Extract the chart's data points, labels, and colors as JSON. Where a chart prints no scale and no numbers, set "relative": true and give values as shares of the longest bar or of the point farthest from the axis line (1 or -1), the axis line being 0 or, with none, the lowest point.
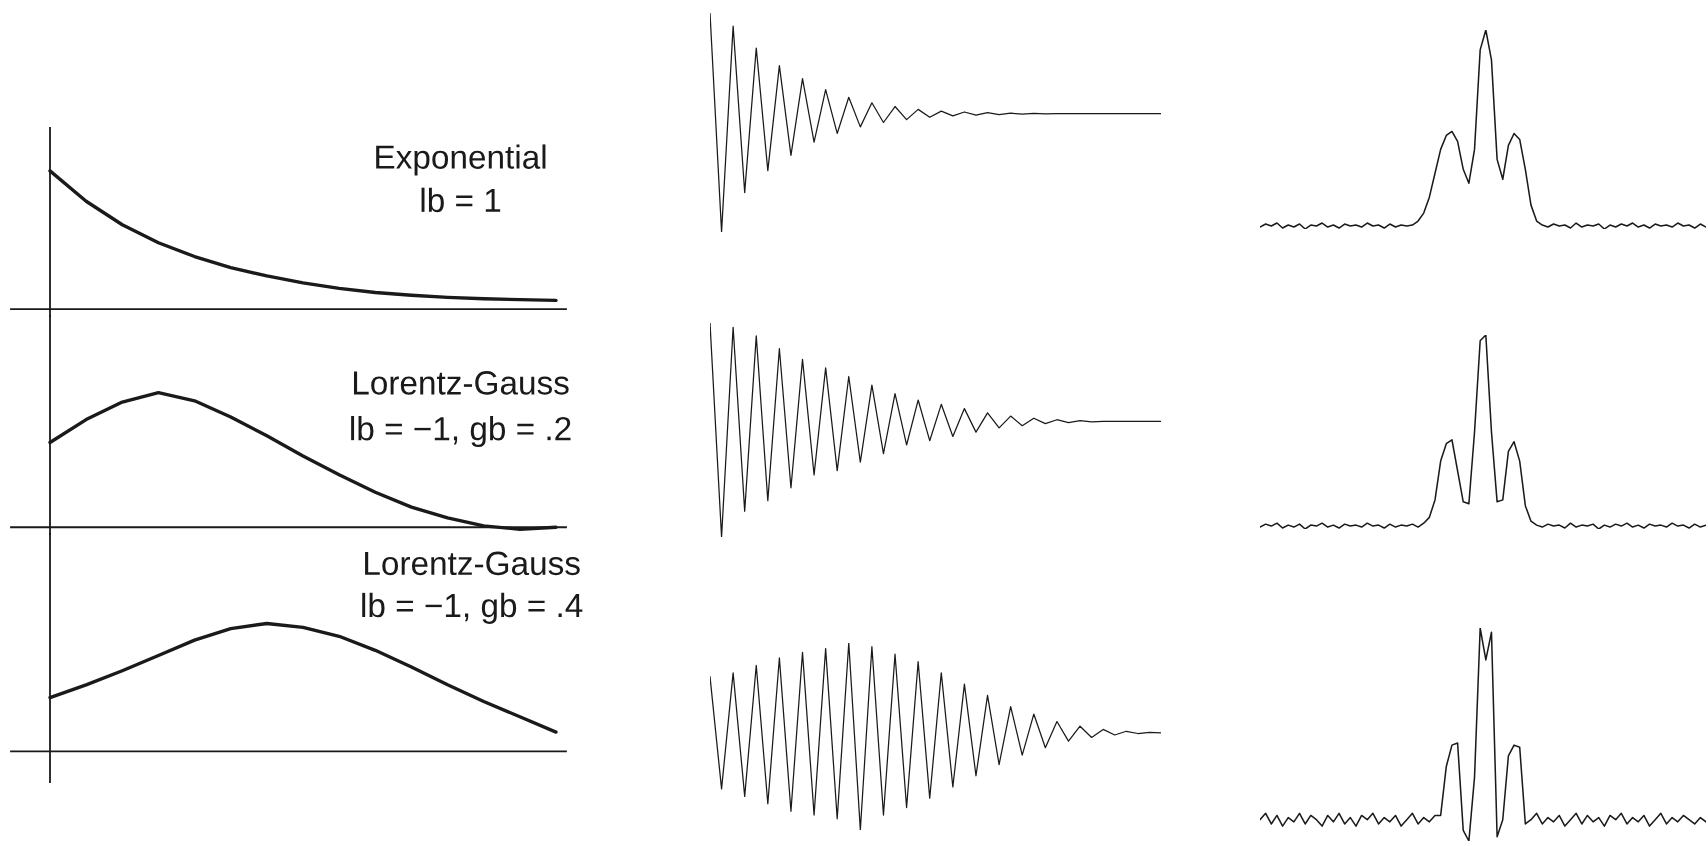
{
  "chart_data": [
    {
      "type": "line",
      "relative": true,
      "title": "Exponential",
      "subtitle": "lb = 1",
      "categories": [
        null,
        null,
        null,
        null,
        null,
        null,
        null,
        null,
        null,
        null,
        null,
        null,
        null,
        null,
        null
      ],
      "series": [
        {
          "color": "#1a1a1a",
          "values": [
            1.0,
            0.78,
            0.61,
            0.48,
            0.38,
            0.3,
            0.24,
            0.19,
            0.15,
            0.12,
            0.1,
            0.085,
            0.075,
            0.068,
            0.063
          ]
        }
      ]
    },
    {
      "type": "line",
      "relative": true,
      "categories": [
        null,
        null,
        null,
        null,
        null,
        null,
        null,
        null,
        null,
        null,
        null,
        null,
        null,
        null,
        null,
        null,
        null,
        null,
        null,
        null,
        null,
        null,
        null,
        null,
        null,
        null,
        null,
        null,
        null,
        null,
        null,
        null,
        null,
        null,
        null,
        null,
        null,
        null,
        null,
        null
      ],
      "series": [
        {
          "color": "#1a1a1a",
          "values": [
            1.0,
            0.0,
            0.94,
            0.18,
            0.84,
            0.28,
            0.76,
            0.35,
            0.7,
            0.41,
            0.65,
            0.45,
            0.615,
            0.48,
            0.59,
            0.5,
            0.573,
            0.513,
            0.56,
            0.524,
            0.552,
            0.53,
            0.548,
            0.534,
            0.545,
            0.536,
            0.543,
            0.538,
            0.542,
            0.539,
            0.54,
            0.54,
            0.54,
            0.54,
            0.54,
            0.54,
            0.54,
            0.54,
            0.54,
            0.54
          ]
        }
      ]
    },
    {
      "type": "line",
      "relative": true,
      "categories": [
        null,
        null,
        null,
        null,
        null,
        null,
        null,
        null,
        null,
        null,
        null,
        null,
        null,
        null,
        null,
        null,
        null,
        null,
        null,
        null,
        null,
        null,
        null,
        null,
        null,
        null,
        null,
        null,
        null,
        null,
        null,
        null,
        null,
        null,
        null,
        null,
        null,
        null,
        null,
        null,
        null,
        null,
        null,
        null,
        null,
        null,
        null,
        null,
        null,
        null,
        null,
        null,
        null,
        null,
        null,
        null,
        null,
        null,
        null,
        null,
        null,
        null,
        null,
        null,
        null,
        null,
        null,
        null,
        null,
        null,
        null,
        null,
        null,
        null,
        null,
        null,
        null,
        null,
        null,
        null
      ],
      "series": [
        {
          "color": "#1a1a1a",
          "values": [
            0.01,
            0.025,
            0.015,
            0.03,
            0.005,
            0.02,
            0.01,
            0.025,
            0.0,
            0.02,
            0.015,
            0.03,
            0.01,
            0.02,
            0.005,
            0.025,
            0.015,
            0.02,
            0.01,
            0.03,
            0.015,
            0.02,
            0.005,
            0.025,
            0.01,
            0.02,
            0.015,
            0.02,
            0.04,
            0.08,
            0.16,
            0.28,
            0.4,
            0.47,
            0.49,
            0.44,
            0.3,
            0.23,
            0.4,
            0.9,
            1.0,
            0.85,
            0.35,
            0.25,
            0.42,
            0.48,
            0.45,
            0.3,
            0.12,
            0.04,
            0.02,
            0.01,
            0.025,
            0.015,
            0.02,
            0.005,
            0.03,
            0.01,
            0.02,
            0.015,
            0.025,
            0.0,
            0.02,
            0.01,
            0.025,
            0.015,
            0.03,
            0.01,
            0.02,
            0.005,
            0.025,
            0.015,
            0.02,
            0.01,
            0.03,
            0.015,
            0.02,
            0.005,
            0.025,
            0.01
          ]
        }
      ]
    },
    {
      "type": "line",
      "relative": true,
      "title": "Lorentz-Gauss",
      "subtitle": "lb = −1, gb = .2",
      "categories": [
        null,
        null,
        null,
        null,
        null,
        null,
        null,
        null,
        null,
        null,
        null,
        null,
        null,
        null,
        null
      ],
      "series": [
        {
          "color": "#1a1a1a",
          "values": [
            0.63,
            0.8,
            0.93,
            1.0,
            0.94,
            0.82,
            0.68,
            0.53,
            0.39,
            0.26,
            0.15,
            0.07,
            0.01,
            -0.015,
            0.0
          ]
        }
      ]
    },
    {
      "type": "line",
      "relative": true,
      "categories": [
        null,
        null,
        null,
        null,
        null,
        null,
        null,
        null,
        null,
        null,
        null,
        null,
        null,
        null,
        null,
        null,
        null,
        null,
        null,
        null,
        null,
        null,
        null,
        null,
        null,
        null,
        null,
        null,
        null,
        null,
        null,
        null,
        null,
        null,
        null,
        null,
        null,
        null,
        null,
        null
      ],
      "series": [
        {
          "color": "#1a1a1a",
          "values": [
            1.0,
            0.0,
            0.98,
            0.12,
            0.94,
            0.17,
            0.88,
            0.23,
            0.83,
            0.29,
            0.79,
            0.31,
            0.75,
            0.35,
            0.71,
            0.39,
            0.67,
            0.43,
            0.64,
            0.45,
            0.62,
            0.47,
            0.6,
            0.49,
            0.58,
            0.51,
            0.565,
            0.52,
            0.555,
            0.53,
            0.548,
            0.534,
            0.544,
            0.538,
            0.54,
            0.54,
            0.54,
            0.54,
            0.54,
            0.54
          ]
        }
      ]
    },
    {
      "type": "line",
      "relative": true,
      "categories": [
        null,
        null,
        null,
        null,
        null,
        null,
        null,
        null,
        null,
        null,
        null,
        null,
        null,
        null,
        null,
        null,
        null,
        null,
        null,
        null,
        null,
        null,
        null,
        null,
        null,
        null,
        null,
        null,
        null,
        null,
        null,
        null,
        null,
        null,
        null,
        null,
        null,
        null,
        null,
        null,
        null,
        null,
        null,
        null,
        null,
        null,
        null,
        null,
        null,
        null,
        null,
        null,
        null,
        null,
        null,
        null,
        null,
        null,
        null,
        null,
        null,
        null,
        null,
        null,
        null,
        null,
        null,
        null,
        null,
        null,
        null,
        null,
        null,
        null,
        null,
        null,
        null,
        null,
        null,
        null
      ],
      "series": [
        {
          "color": "#1a1a1a",
          "values": [
            0.01,
            0.025,
            0.015,
            0.03,
            0.005,
            0.02,
            0.01,
            0.025,
            0.0,
            0.02,
            0.015,
            0.03,
            0.01,
            0.02,
            0.005,
            0.025,
            0.015,
            0.02,
            0.01,
            0.03,
            0.015,
            0.02,
            0.005,
            0.025,
            0.01,
            0.02,
            0.015,
            0.025,
            0.01,
            0.03,
            0.06,
            0.15,
            0.35,
            0.44,
            0.46,
            0.3,
            0.14,
            0.13,
            0.5,
            0.97,
            1.0,
            0.5,
            0.14,
            0.15,
            0.4,
            0.45,
            0.35,
            0.12,
            0.04,
            0.02,
            0.01,
            0.025,
            0.015,
            0.02,
            0.005,
            0.03,
            0.01,
            0.02,
            0.015,
            0.025,
            0.0,
            0.02,
            0.01,
            0.025,
            0.015,
            0.03,
            0.01,
            0.02,
            0.005,
            0.025,
            0.015,
            0.02,
            0.01,
            0.03,
            0.015,
            0.02,
            0.005,
            0.025,
            0.01,
            0.02
          ]
        }
      ]
    },
    {
      "type": "line",
      "relative": true,
      "title": "Lorentz-Gauss",
      "subtitle": "lb = −1, gb = .4",
      "categories": [
        null,
        null,
        null,
        null,
        null,
        null,
        null,
        null,
        null,
        null,
        null,
        null,
        null,
        null,
        null
      ],
      "series": [
        {
          "color": "#1a1a1a",
          "values": [
            0.42,
            0.52,
            0.63,
            0.75,
            0.87,
            0.96,
            1.0,
            0.97,
            0.9,
            0.79,
            0.66,
            0.52,
            0.39,
            0.27,
            0.15
          ]
        }
      ]
    },
    {
      "type": "line",
      "relative": true,
      "categories": [
        null,
        null,
        null,
        null,
        null,
        null,
        null,
        null,
        null,
        null,
        null,
        null,
        null,
        null,
        null,
        null,
        null,
        null,
        null,
        null,
        null,
        null,
        null,
        null,
        null,
        null,
        null,
        null,
        null,
        null,
        null,
        null,
        null,
        null,
        null,
        null,
        null,
        null,
        null,
        null
      ],
      "series": [
        {
          "color": "#1a1a1a",
          "values": [
            0.82,
            0.22,
            0.84,
            0.18,
            0.88,
            0.14,
            0.92,
            0.1,
            0.95,
            0.08,
            0.97,
            0.06,
            1.0,
            0.0,
            0.98,
            0.08,
            0.94,
            0.12,
            0.9,
            0.17,
            0.84,
            0.23,
            0.78,
            0.29,
            0.72,
            0.35,
            0.66,
            0.4,
            0.62,
            0.44,
            0.58,
            0.475,
            0.555,
            0.495,
            0.538,
            0.508,
            0.528,
            0.516,
            0.522,
            0.52
          ]
        }
      ]
    },
    {
      "type": "line",
      "relative": true,
      "categories": [
        null,
        null,
        null,
        null,
        null,
        null,
        null,
        null,
        null,
        null,
        null,
        null,
        null,
        null,
        null,
        null,
        null,
        null,
        null,
        null,
        null,
        null,
        null,
        null,
        null,
        null,
        null,
        null,
        null,
        null,
        null,
        null,
        null,
        null,
        null,
        null,
        null,
        null,
        null,
        null,
        null,
        null,
        null,
        null,
        null,
        null,
        null,
        null,
        null,
        null,
        null,
        null,
        null,
        null,
        null,
        null,
        null,
        null,
        null,
        null,
        null,
        null,
        null,
        null,
        null,
        null,
        null,
        null,
        null,
        null,
        null,
        null,
        null,
        null,
        null,
        null,
        null,
        null,
        null,
        null
      ],
      "series": [
        {
          "color": "#1a1a1a",
          "values": [
            0.1,
            0.13,
            0.08,
            0.12,
            0.07,
            0.11,
            0.09,
            0.13,
            0.08,
            0.12,
            0.1,
            0.07,
            0.12,
            0.09,
            0.13,
            0.08,
            0.11,
            0.07,
            0.12,
            0.1,
            0.13,
            0.08,
            0.11,
            0.09,
            0.12,
            0.07,
            0.1,
            0.13,
            0.08,
            0.11,
            0.09,
            0.12,
            0.12,
            0.35,
            0.45,
            0.46,
            0.05,
            0.0,
            0.3,
            1.0,
            0.85,
            0.98,
            0.02,
            0.1,
            0.4,
            0.45,
            0.44,
            0.08,
            0.1,
            0.13,
            0.08,
            0.11,
            0.09,
            0.12,
            0.07,
            0.1,
            0.13,
            0.08,
            0.12,
            0.09,
            0.11,
            0.07,
            0.12,
            0.1,
            0.13,
            0.08,
            0.11,
            0.09,
            0.12,
            0.07,
            0.1,
            0.13,
            0.08,
            0.11,
            0.09,
            0.12,
            0.1,
            0.08,
            0.11,
            0.09
          ]
        }
      ]
    }
  ]
}
